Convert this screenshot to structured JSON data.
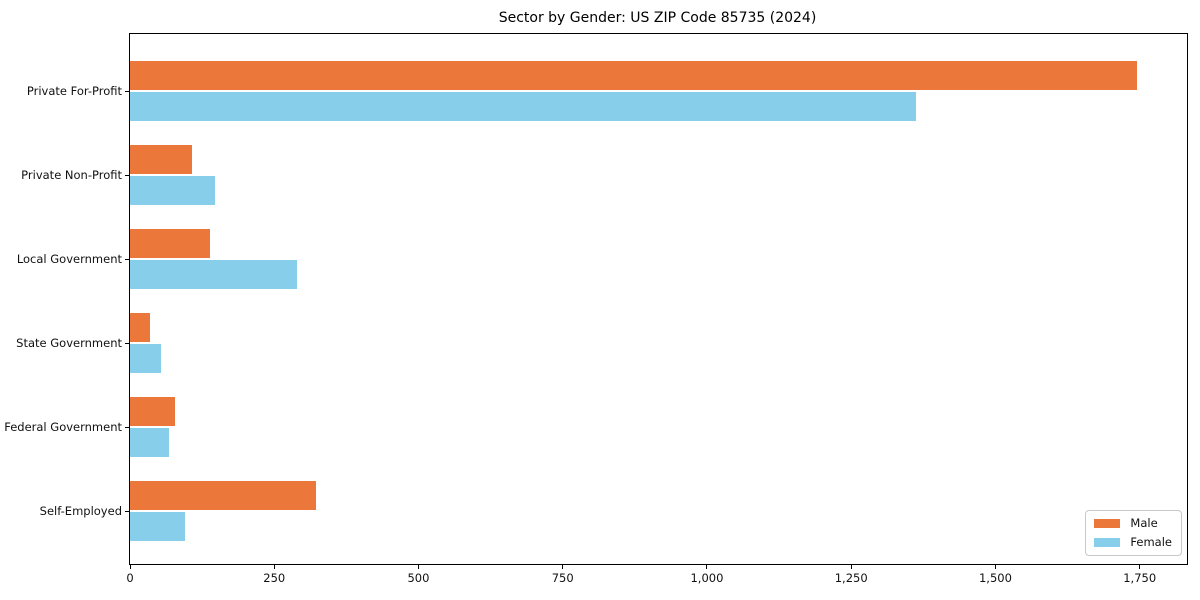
{
  "chart_data": {
    "type": "bar",
    "orientation": "horizontal",
    "title": "Sector by Gender: US ZIP Code 85735 (2024)",
    "categories": [
      "Private For-Profit",
      "Private Non-Profit",
      "Local Government",
      "State Government",
      "Federal Government",
      "Self-Employed"
    ],
    "series": [
      {
        "name": "Male",
        "color": "#EB783A",
        "values": [
          1745,
          107,
          138,
          35,
          78,
          322
        ]
      },
      {
        "name": "Female",
        "color": "#87CEEB",
        "values": [
          1362,
          147,
          290,
          53,
          67,
          95
        ]
      }
    ],
    "xlabel": "",
    "ylabel": "",
    "xlim": [
      0,
      1832
    ],
    "xticks": [
      {
        "value": 0,
        "label": "0"
      },
      {
        "value": 250,
        "label": "250"
      },
      {
        "value": 500,
        "label": "500"
      },
      {
        "value": 750,
        "label": "750"
      },
      {
        "value": 1000,
        "label": "1,000"
      },
      {
        "value": 1250,
        "label": "1,250"
      },
      {
        "value": 1500,
        "label": "1,500"
      },
      {
        "value": 1750,
        "label": "1,750"
      }
    ],
    "grid": false,
    "legend_position": "lower right"
  }
}
